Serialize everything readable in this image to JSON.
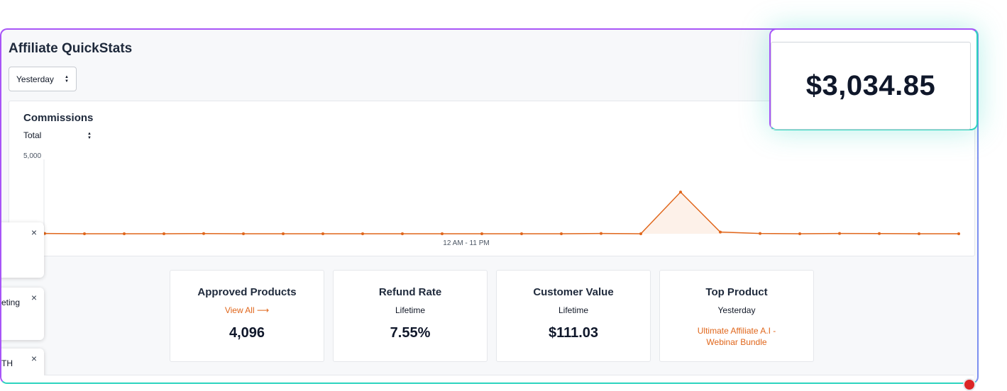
{
  "header": {
    "title": "Affiliate QuickStats",
    "period_select": "Yesterday"
  },
  "chart_card": {
    "title": "Commissions",
    "series_select": "Total"
  },
  "chart_data": {
    "type": "area",
    "title": "Commissions",
    "xlabel": "12 AM - 11 PM",
    "ylabel": "",
    "yticks": [
      "5,000"
    ],
    "ylim": [
      0,
      5000
    ],
    "x": [
      0,
      1,
      2,
      3,
      4,
      5,
      6,
      7,
      8,
      9,
      10,
      11,
      12,
      13,
      14,
      15,
      16,
      17,
      18,
      19,
      20,
      21,
      22,
      23
    ],
    "values": [
      20,
      0,
      0,
      0,
      10,
      0,
      0,
      0,
      0,
      0,
      0,
      0,
      0,
      0,
      20,
      0,
      2700,
      110,
      20,
      0,
      20,
      10,
      0,
      0
    ],
    "color": "#e0661b"
  },
  "side_cards": [
    {
      "text": "",
      "close": "×"
    },
    {
      "text": "eting",
      "close": "×"
    },
    {
      "text": "TH",
      "close": "×"
    }
  ],
  "stats": [
    {
      "heading": "Approved Products",
      "link": "View All ⟶",
      "value": "4,096"
    },
    {
      "heading": "Refund Rate",
      "sub": "Lifetime",
      "value": "7.55%"
    },
    {
      "heading": "Customer Value",
      "sub": "Lifetime",
      "value": "$111.03"
    },
    {
      "heading": "Top Product",
      "sub": "Yesterday",
      "product": "Ultimate Affiliate A.I - Webinar Bundle"
    }
  ],
  "highlight": {
    "value": "$3,034.85"
  }
}
